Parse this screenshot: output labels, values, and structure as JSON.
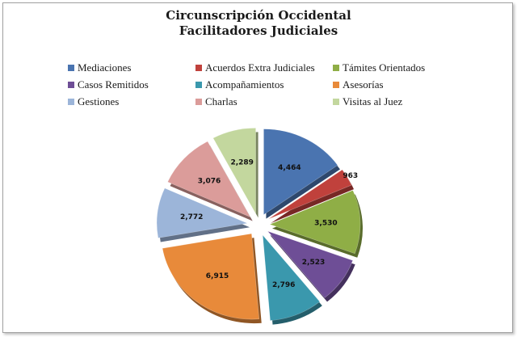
{
  "chart_data": {
    "type": "pie",
    "title": "Circunscripción Occidental",
    "subtitle": "Facilitadores Judiciales",
    "legend_position": "top",
    "categories": [
      "Mediaciones",
      "Acuerdos Extra Judiciales",
      "Támites Orientados",
      "Casos Remitidos",
      "Acompañamientos",
      "Asesorías",
      "Gestiones",
      "Charlas",
      "Visitas al Juez"
    ],
    "values": [
      4464,
      963,
      3530,
      2523,
      2796,
      6915,
      2772,
      3076,
      2289
    ],
    "value_labels": [
      "4,464",
      "963",
      "3,530",
      "2,523",
      "2,796",
      "6,915",
      "2,772",
      "3,076",
      "2,289"
    ],
    "colors": [
      "#4a74b0",
      "#c0413c",
      "#8fae46",
      "#6e4e96",
      "#3a98ad",
      "#e88a3a",
      "#9cb5d9",
      "#db9c9a",
      "#c3d79e"
    ]
  }
}
